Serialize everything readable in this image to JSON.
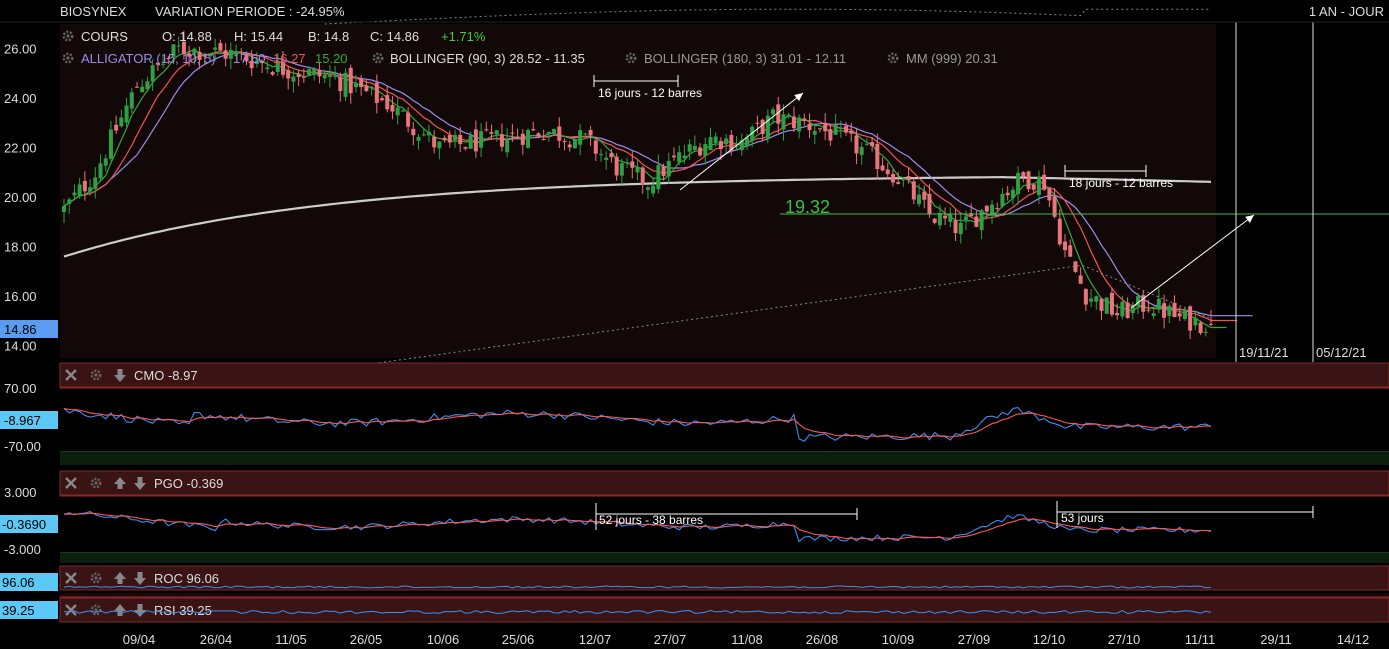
{
  "header": {
    "symbol": "BIOSYNEX",
    "variation": "VARIATION PERIODE : -24.95%",
    "period": "1 AN - JOUR"
  },
  "legend": {
    "cours_label": "COURS",
    "o": "O: 14.88",
    "h": "H: 15.44",
    "b": "B: 14.8",
    "c": "C: 14.86",
    "change": "+1.71%",
    "alligator_label": "ALLIGATOR (15, 10, 5)",
    "alligator_v1": "17.60",
    "alligator_v2": "16.27",
    "alligator_v3": "15.20",
    "bollinger1": "BOLLINGER (90, 3) 28.52 - 11.35",
    "bollinger2": "BOLLINGER (180, 3) 31.01 - 12.11",
    "mm": "MM (999) 20.31"
  },
  "annotations": {
    "span1": "16 jours - 12 barres",
    "span2": "18 jours - 12 barres",
    "level": "19.32",
    "pgo_span1": "52 jours - 38 barres",
    "pgo_span2": "53 jours"
  },
  "price_badge": "14.86",
  "vertical_dates": [
    "19/11/21",
    "05/12/21"
  ],
  "panels": {
    "cmo": {
      "title": "CMO -8.97",
      "badge": "-8.967",
      "top_label": "70.00",
      "bottom_label": "-70.00"
    },
    "pgo": {
      "title": "PGO -0.369",
      "badge": "-0.3690",
      "top_label": "3.000",
      "bottom_label": "-3.000"
    },
    "roc": {
      "title": "ROC 96.06",
      "badge": "96.06"
    },
    "rsi": {
      "title": "RSI 39.25",
      "badge": "39.25"
    }
  },
  "colors": {
    "background": "#000000",
    "up": "#2ea043",
    "down": "#e8747c",
    "jaw": "#9a8cf0",
    "teeth": "#ee5555",
    "lips": "#33aa33",
    "mm": "#cccccc",
    "osc_main": "#3a8ff0",
    "osc_signal": "#ff5555",
    "panel_header": "#3a1414"
  },
  "chart_data": {
    "type": "candlestick",
    "title": "BIOSYNEX",
    "y_ticks": [
      "26.00",
      "24.00",
      "22.00",
      "20.00",
      "18.00",
      "16.00",
      "14.00"
    ],
    "ylim": [
      13.5,
      27.0
    ],
    "x_ticks": [
      "09/04",
      "26/04",
      "11/05",
      "26/05",
      "10/06",
      "25/06",
      "12/07",
      "27/07",
      "11/08",
      "26/08",
      "10/09",
      "27/09",
      "12/10",
      "27/10",
      "11/11",
      "29/11",
      "14/12"
    ],
    "price_keypoints": [
      [
        0,
        19.5
      ],
      [
        6,
        21.0
      ],
      [
        14,
        24.5
      ],
      [
        22,
        26.0
      ],
      [
        32,
        25.8
      ],
      [
        42,
        25.2
      ],
      [
        52,
        24.8
      ],
      [
        62,
        23.8
      ],
      [
        72,
        22.0
      ],
      [
        82,
        22.3
      ],
      [
        92,
        22.7
      ],
      [
        100,
        22.3
      ],
      [
        106,
        21.2
      ],
      [
        112,
        20.6
      ],
      [
        118,
        21.6
      ],
      [
        124,
        22.4
      ],
      [
        130,
        22.2
      ],
      [
        136,
        23.2
      ],
      [
        142,
        23.0
      ],
      [
        148,
        22.5
      ],
      [
        154,
        21.8
      ],
      [
        160,
        20.8
      ],
      [
        166,
        19.3
      ],
      [
        172,
        18.7
      ],
      [
        178,
        19.8
      ],
      [
        184,
        20.8
      ],
      [
        188,
        20.6
      ],
      [
        192,
        17.8
      ],
      [
        196,
        16.1
      ],
      [
        202,
        15.3
      ],
      [
        208,
        15.7
      ],
      [
        214,
        15.1
      ],
      [
        220,
        14.86
      ]
    ],
    "last": {
      "open": 14.88,
      "high": 15.44,
      "low": 14.8,
      "close": 14.86,
      "change_pct": 1.71
    },
    "level_line": 19.32,
    "mm_999_last": 20.31,
    "alligator_last": {
      "jaw": 17.6,
      "teeth": 16.27,
      "lips": 15.2
    },
    "bollinger_90_3": {
      "upper": 28.52,
      "lower": 11.35
    },
    "bollinger_180_3": {
      "upper": 31.01,
      "lower": 12.11
    },
    "oscillators": {
      "cmo": {
        "last": -8.97,
        "bands": [
          70,
          -70
        ]
      },
      "pgo": {
        "last": -0.369,
        "bands": [
          3,
          -3
        ]
      },
      "roc": {
        "last": 96.06
      },
      "rsi": {
        "last": 39.25
      }
    }
  }
}
